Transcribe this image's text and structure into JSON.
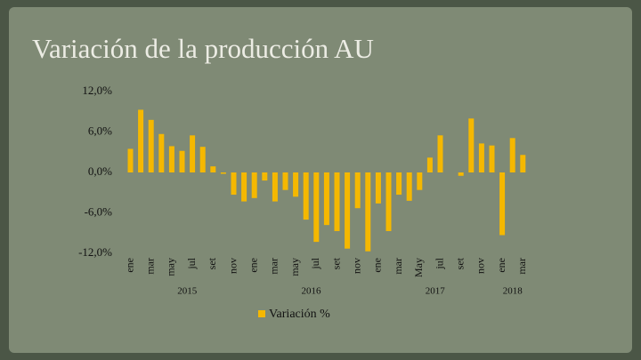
{
  "chart_data": {
    "type": "bar",
    "title": "Variación de la producción AU",
    "categories": [
      "ene",
      null,
      "mar",
      null,
      "may",
      null,
      "jul",
      null,
      "set",
      null,
      "nov",
      null,
      "ene",
      null,
      "mar",
      null,
      "may",
      null,
      "jul",
      null,
      "set",
      null,
      "nov",
      null,
      "ene",
      null,
      "mar",
      null,
      "May",
      null,
      "jul",
      null,
      "set",
      null,
      "nov",
      null,
      "ene",
      null,
      "mar"
    ],
    "year_labels": [
      "2015",
      "2016",
      "2017",
      "2018"
    ],
    "series": [
      {
        "name": "Variación %",
        "color": "#f5b800",
        "values": [
          3.5,
          9.3,
          7.8,
          5.7,
          3.9,
          3.2,
          5.5,
          3.8,
          0.9,
          -0.2,
          -3.3,
          -4.3,
          -3.8,
          -1.2,
          -4.3,
          -2.6,
          -3.6,
          -7.0,
          -10.3,
          -7.8,
          -8.7,
          -11.3,
          -5.3,
          -11.7,
          -4.6,
          -8.7,
          -3.3,
          -4.2,
          -2.6,
          2.2,
          5.5,
          0,
          -0.5,
          8.0,
          4.3,
          4.0,
          -9.3,
          5.1,
          2.6
        ]
      }
    ],
    "ylim": [
      -12,
      12
    ],
    "yticks": [
      {
        "value": 12,
        "label": "12,0%"
      },
      {
        "value": 6,
        "label": "6,0%"
      },
      {
        "value": 0,
        "label": "0,0%"
      },
      {
        "value": -6,
        "label": "-6,0%"
      },
      {
        "value": -12,
        "label": "-12,0%"
      }
    ],
    "grid": false
  }
}
